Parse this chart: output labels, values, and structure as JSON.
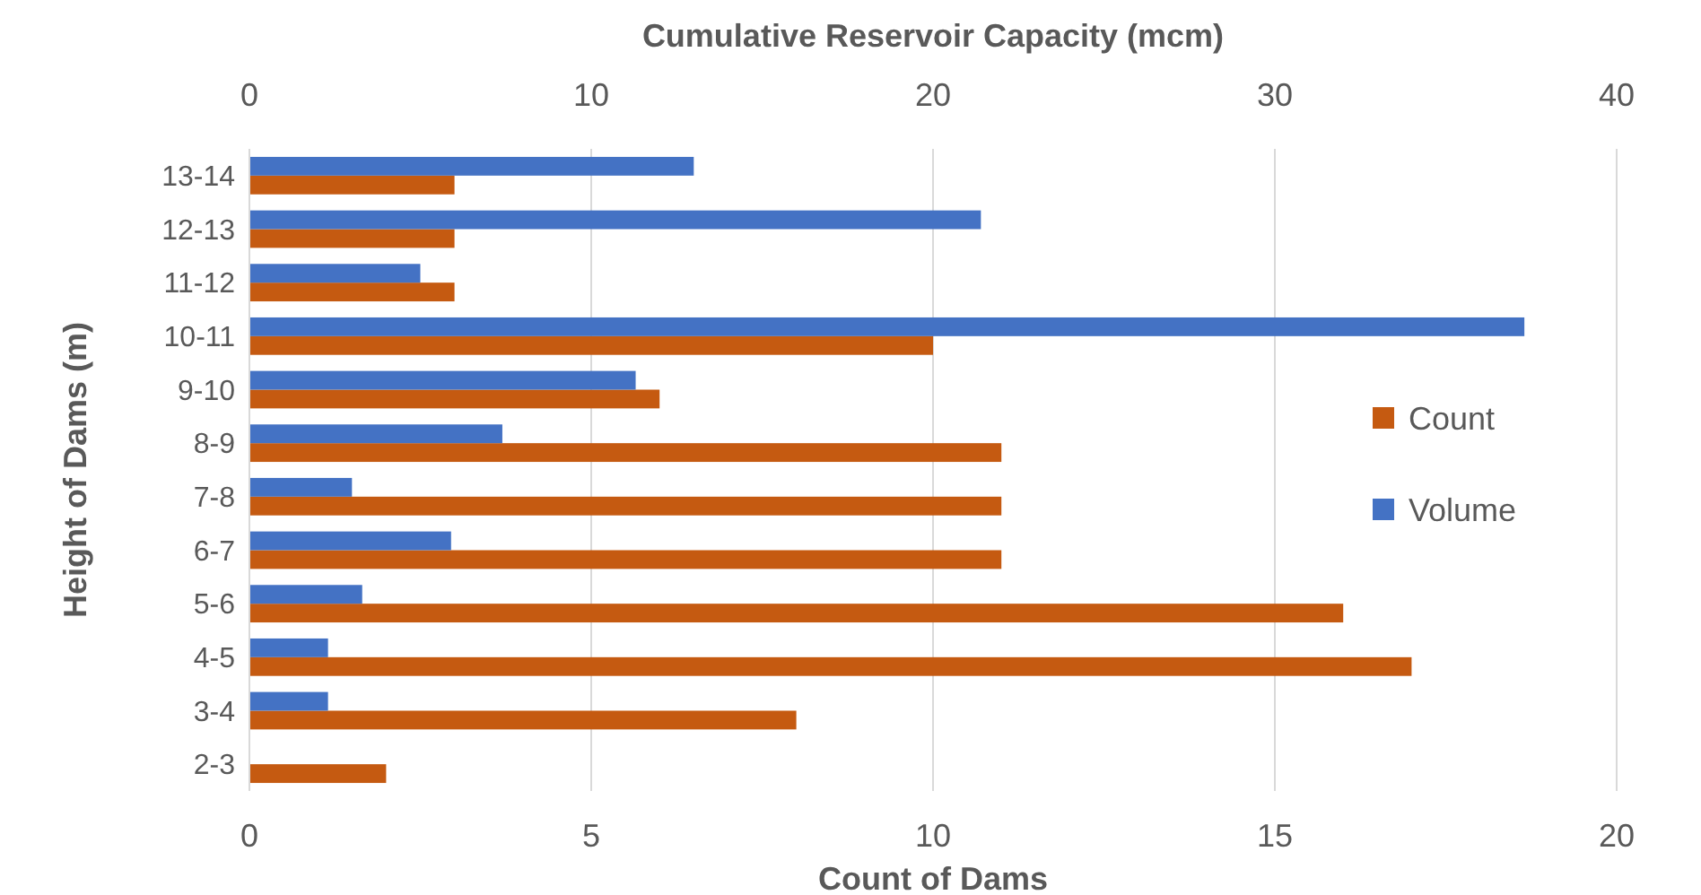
{
  "chart_data": {
    "type": "bar",
    "orientation": "horizontal",
    "xlabel": "Count of Dams",
    "x2label": "Cumulative Reservoir Capacity (mcm)",
    "ylabel": "Height of Dams (m)",
    "categories": [
      "13-14",
      "12-13",
      "11-12",
      "10-11",
      "9-10",
      "8-9",
      "7-8",
      "6-7",
      "5-6",
      "4-5",
      "3-4",
      "2-3"
    ],
    "xlim": [
      0,
      20
    ],
    "xticks": [
      0,
      5,
      10,
      15,
      20
    ],
    "x2lim": [
      0,
      40
    ],
    "x2ticks": [
      0,
      10,
      20,
      30,
      40
    ],
    "grid": "x",
    "legend": "right",
    "series": [
      {
        "name": "Count",
        "color": "#c55a11",
        "values": [
          3,
          3,
          3,
          10,
          6,
          11,
          11,
          11,
          16,
          17,
          8,
          2
        ]
      },
      {
        "name": "Volume",
        "color": "#4472c4",
        "axis": "x2",
        "values": [
          13,
          21.4,
          5,
          37.3,
          11.3,
          7.4,
          3,
          5.9,
          3.3,
          2.3,
          2.3,
          null
        ]
      }
    ]
  }
}
